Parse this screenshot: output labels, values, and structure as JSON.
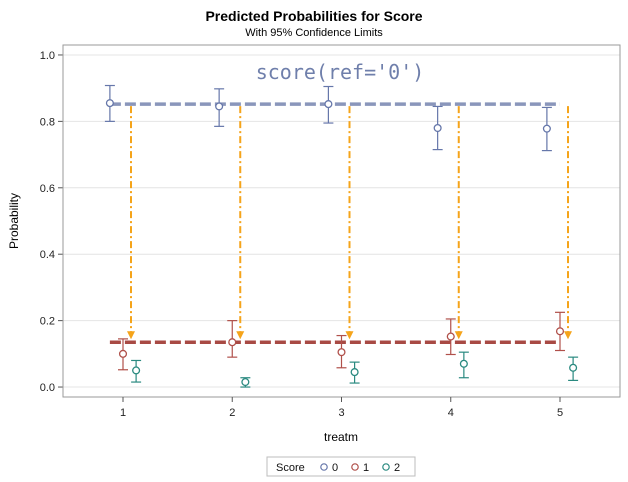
{
  "chart_data": {
    "type": "scatter",
    "title": "Predicted Probabilities for Score",
    "subtitle": "With 95% Confidence Limits",
    "xlabel": "treatm",
    "ylabel": "Probability",
    "annotation": "score(ref='0')",
    "categories": [
      1,
      2,
      3,
      4,
      5
    ],
    "xlim": [
      0.4,
      5.6
    ],
    "ylim": [
      -0.03,
      1.03
    ],
    "yticks": [
      0.0,
      0.2,
      0.4,
      0.6,
      0.8,
      1.0
    ],
    "ytick_labels": [
      "0.0",
      "0.2",
      "0.4",
      "0.6",
      "0.8",
      "1.0"
    ],
    "xtick_labels": [
      "1",
      "2",
      "3",
      "4",
      "5"
    ],
    "grid": true,
    "legend": {
      "title": "Score",
      "placement": "bottom-center"
    },
    "series": [
      {
        "name": "0",
        "color": "#6677aa",
        "offset": -0.12,
        "values": [
          0.855,
          0.845,
          0.852,
          0.78,
          0.778
        ],
        "lower": [
          0.8,
          0.785,
          0.795,
          0.715,
          0.712
        ],
        "upper": [
          0.908,
          0.898,
          0.905,
          0.845,
          0.842
        ]
      },
      {
        "name": "1",
        "color": "#b0504a",
        "offset": 0.0,
        "values": [
          0.1,
          0.135,
          0.105,
          0.152,
          0.168
        ],
        "lower": [
          0.052,
          0.09,
          0.058,
          0.098,
          0.11
        ],
        "upper": [
          0.145,
          0.2,
          0.155,
          0.205,
          0.225
        ]
      },
      {
        "name": "2",
        "color": "#2a8a80",
        "offset": 0.12,
        "values": [
          0.05,
          0.015,
          0.045,
          0.07,
          0.058
        ],
        "lower": [
          0.015,
          0.0,
          0.012,
          0.028,
          0.02
        ],
        "upper": [
          0.08,
          0.028,
          0.075,
          0.105,
          0.09
        ]
      }
    ],
    "reference_lines": [
      {
        "series": "0",
        "y": 0.852,
        "color": "#8a96bb"
      },
      {
        "series": "1",
        "y": 0.135,
        "color": "#a84a44"
      }
    ],
    "arrows": {
      "color": "#f5a41a",
      "from_y": 0.852,
      "to_y": 0.135,
      "x": [
        1,
        2,
        3,
        4,
        5
      ]
    }
  }
}
